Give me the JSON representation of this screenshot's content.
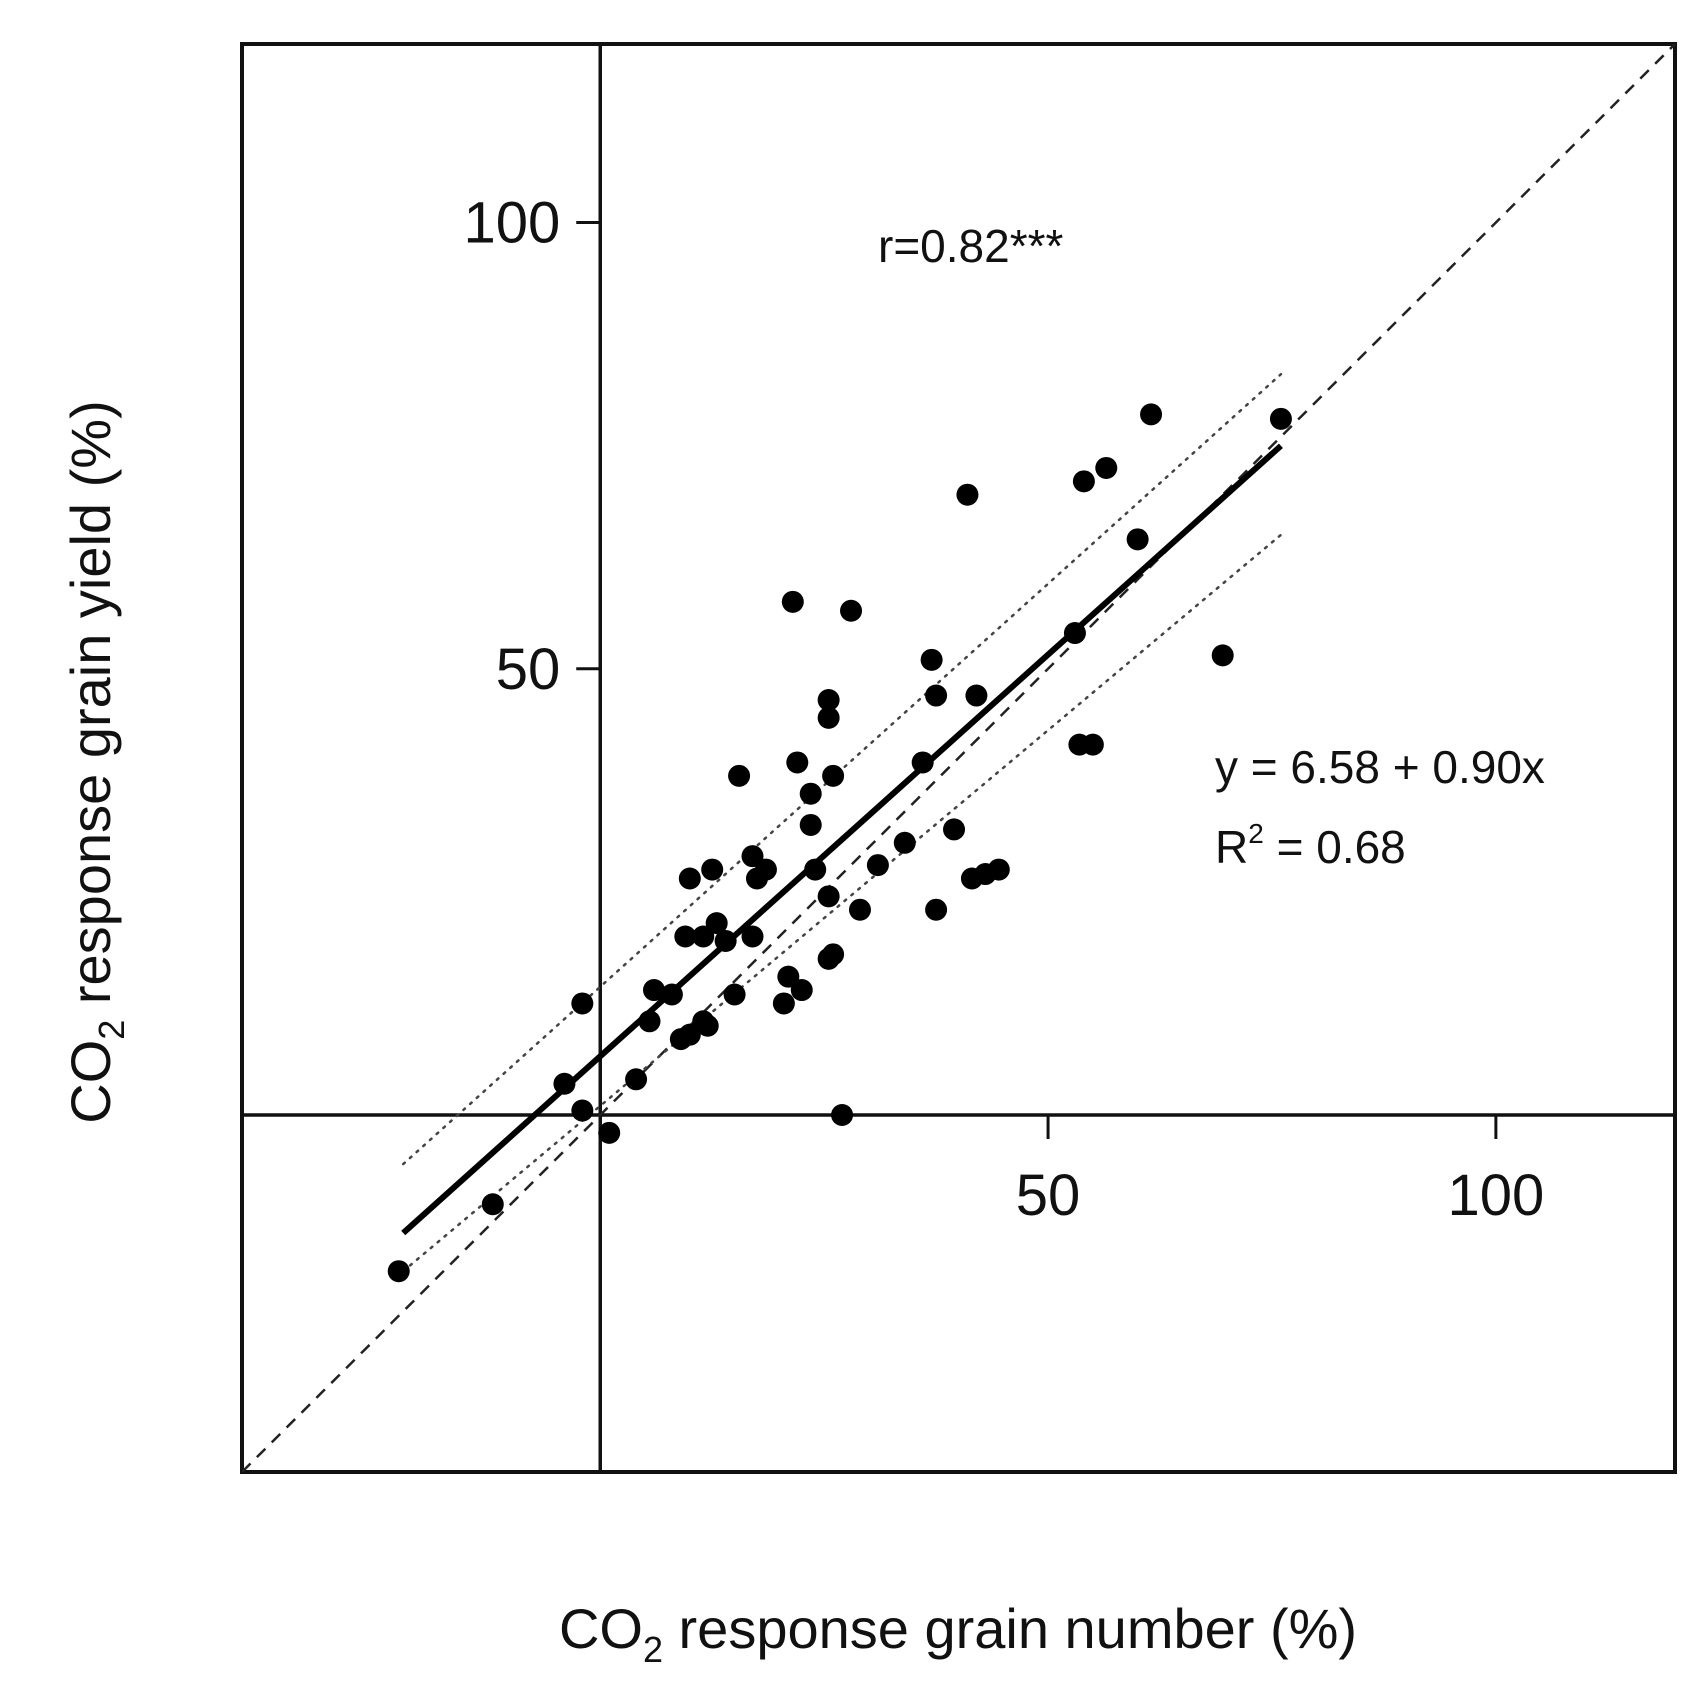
{
  "chart_data": {
    "type": "scatter",
    "xlabel": {
      "pre": "CO",
      "sub": "2",
      "post": " response grain number (%)"
    },
    "ylabel": {
      "pre": "CO",
      "sub": "2",
      "post": " response grain yield (%)"
    },
    "xlim": [
      -40,
      120
    ],
    "ylim": [
      -40,
      120
    ],
    "xticks": [
      50,
      100
    ],
    "yticks": [
      50,
      100
    ],
    "x_tick_labels": [
      "50",
      "100"
    ],
    "y_tick_labels": [
      "50",
      "100"
    ],
    "zero_lines": true,
    "annotations": {
      "correlation": "r=0.82***",
      "equation": "y = 6.58 + 0.90x",
      "r2_pre": "R",
      "r2_sup": "2",
      "r2_post": " = 0.68"
    },
    "identity_line": {
      "style": "dashed",
      "slope": 1,
      "intercept": 0
    },
    "regression": {
      "intercept": 6.58,
      "slope": 0.9,
      "x_range": [
        -22,
        76
      ]
    },
    "confidence_band": {
      "style": "dotted",
      "upper": [
        [
          -22,
          -5.5
        ],
        [
          76,
          83
        ]
      ],
      "lower": [
        [
          -22,
          -17.5
        ],
        [
          76,
          65
        ]
      ]
    },
    "points": [
      [
        -22.5,
        -17.5
      ],
      [
        -12,
        -10
      ],
      [
        -4,
        3.5
      ],
      [
        -2,
        0.5
      ],
      [
        -2,
        12.5
      ],
      [
        1,
        -2
      ],
      [
        4,
        4
      ],
      [
        5.5,
        10.5
      ],
      [
        6,
        14
      ],
      [
        8,
        13.5
      ],
      [
        9,
        8.5
      ],
      [
        9.5,
        20
      ],
      [
        10,
        26.5
      ],
      [
        10,
        9
      ],
      [
        11.5,
        20
      ],
      [
        11.5,
        10.5
      ],
      [
        12,
        10
      ],
      [
        12.5,
        27.5
      ],
      [
        13,
        21.5
      ],
      [
        14,
        19.5
      ],
      [
        15,
        13.5
      ],
      [
        15.5,
        38
      ],
      [
        17,
        29
      ],
      [
        17,
        20
      ],
      [
        17.5,
        26.5
      ],
      [
        18.5,
        27.5
      ],
      [
        20.5,
        12.5
      ],
      [
        21,
        15.5
      ],
      [
        21.5,
        57.5
      ],
      [
        22,
        39.5
      ],
      [
        22.5,
        14
      ],
      [
        23.5,
        36
      ],
      [
        23.5,
        32.5
      ],
      [
        24,
        27.5
      ],
      [
        25.5,
        46.5
      ],
      [
        25.5,
        44.5
      ],
      [
        25.5,
        24.5
      ],
      [
        25.5,
        17.5
      ],
      [
        26,
        38
      ],
      [
        26,
        18
      ],
      [
        27,
        0
      ],
      [
        28,
        56.5
      ],
      [
        29,
        23
      ],
      [
        31,
        28
      ],
      [
        34,
        30.5
      ],
      [
        36,
        39.5
      ],
      [
        37,
        51
      ],
      [
        37.5,
        47
      ],
      [
        37.5,
        23
      ],
      [
        39.5,
        32
      ],
      [
        41,
        69.5
      ],
      [
        41.5,
        26.5
      ],
      [
        42,
        47
      ],
      [
        43,
        27
      ],
      [
        44.5,
        27.5
      ],
      [
        53,
        54
      ],
      [
        53.5,
        41.5
      ],
      [
        54,
        71
      ],
      [
        55,
        41.5
      ],
      [
        56.5,
        72.5
      ],
      [
        60,
        64.5
      ],
      [
        61.5,
        78.5
      ],
      [
        69.5,
        51.5
      ],
      [
        76,
        78
      ]
    ]
  }
}
